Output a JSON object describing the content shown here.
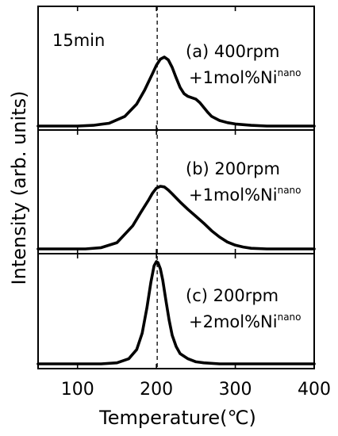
{
  "chart_data": {
    "type": "line",
    "xlabel": "Temperature(℃)",
    "ylabel": "Intensity (arb. units)",
    "xlim": [
      50,
      400
    ],
    "xticks": [
      100,
      200,
      300,
      400
    ],
    "reference_line_x": 201,
    "time_label": "15min",
    "panels": [
      {
        "label_line1": "(a) 400rpm",
        "label_line2_prefix": "+1mol%Ni",
        "label_line2_sup": "nano",
        "x": [
          50,
          100,
          120,
          140,
          160,
          175,
          185,
          195,
          200,
          205,
          210,
          215,
          220,
          225,
          230,
          235,
          240,
          245,
          250,
          255,
          260,
          265,
          270,
          280,
          290,
          300,
          320,
          340,
          360,
          380,
          400
        ],
        "y": [
          0.0,
          0.0,
          0.01,
          0.04,
          0.14,
          0.32,
          0.52,
          0.76,
          0.88,
          0.97,
          1.0,
          0.96,
          0.85,
          0.7,
          0.56,
          0.47,
          0.43,
          0.41,
          0.39,
          0.34,
          0.27,
          0.2,
          0.14,
          0.08,
          0.05,
          0.03,
          0.01,
          0.0,
          0.0,
          0.0,
          0.0
        ]
      },
      {
        "label_line1": "(b) 200rpm",
        "label_line2_prefix": "+1mol%Ni",
        "label_line2_sup": "nano",
        "x": [
          50,
          110,
          130,
          150,
          170,
          180,
          190,
          195,
          200,
          205,
          210,
          215,
          220,
          230,
          240,
          250,
          260,
          270,
          280,
          290,
          300,
          310,
          320,
          340,
          360,
          400
        ],
        "y": [
          0.0,
          0.0,
          0.02,
          0.1,
          0.37,
          0.58,
          0.78,
          0.89,
          0.97,
          1.0,
          0.99,
          0.94,
          0.88,
          0.75,
          0.63,
          0.52,
          0.41,
          0.29,
          0.19,
          0.11,
          0.06,
          0.03,
          0.01,
          0.0,
          0.0,
          0.0
        ]
      },
      {
        "label_line1": "(c) 200rpm",
        "label_line2_prefix": "+2mol%Ni",
        "label_line2_sup": "nano",
        "x": [
          50,
          130,
          150,
          165,
          175,
          182,
          188,
          193,
          197,
          200,
          202,
          205,
          208,
          212,
          216,
          220,
          225,
          230,
          240,
          250,
          260,
          280,
          300,
          400
        ],
        "y": [
          0.0,
          0.0,
          0.01,
          0.05,
          0.14,
          0.3,
          0.55,
          0.8,
          0.96,
          1.0,
          0.99,
          0.93,
          0.82,
          0.62,
          0.43,
          0.28,
          0.17,
          0.1,
          0.05,
          0.02,
          0.01,
          0.0,
          0.0,
          0.0
        ]
      }
    ]
  }
}
